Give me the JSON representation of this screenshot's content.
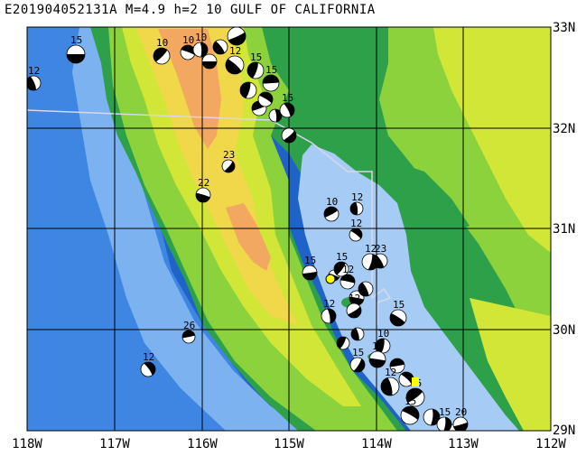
{
  "title": "E201904052131A M=4.9 h=2 10 GULF OF CALIFORNIA",
  "map": {
    "lon_labels": [
      "118W",
      "117W",
      "116W",
      "115W",
      "114W",
      "113W",
      "112W"
    ],
    "lat_labels": [
      "33N",
      "32N",
      "31N",
      "30N",
      "29N"
    ],
    "colors": {
      "deep_ocean": "#1f62c8",
      "ocean": "#3e86e2",
      "shelf": "#7cb2f0",
      "gulf": "#a6ccf6",
      "lowland": "#2fa04a",
      "plain": "#8cd23c",
      "upland": "#d2e638",
      "highland": "#f0d84a",
      "mountain": "#f2a860",
      "grid": "#000000",
      "border": "#d8d8e8",
      "highlight": "#ffff00"
    }
  },
  "mechanisms": [
    {
      "id": "m1",
      "label": "15"
    },
    {
      "id": "m2",
      "label": "12"
    },
    {
      "id": "m3",
      "label": "10"
    },
    {
      "id": "m4",
      "label": "10"
    },
    {
      "id": "m5",
      "label": "10"
    },
    {
      "id": "m6",
      "label": "12"
    },
    {
      "id": "m7",
      "label": "12"
    },
    {
      "id": "m8",
      "label": "15"
    },
    {
      "id": "m9",
      "label": "15"
    },
    {
      "id": "m10",
      "label": "15"
    },
    {
      "id": "m11",
      "label": "23"
    },
    {
      "id": "m12",
      "label": "22"
    },
    {
      "id": "m13",
      "label": "12"
    },
    {
      "id": "m14",
      "label": "10"
    },
    {
      "id": "m15",
      "label": "12"
    },
    {
      "id": "m16",
      "label": "12"
    },
    {
      "id": "m17",
      "label": "15"
    },
    {
      "id": "m18",
      "label": "23"
    },
    {
      "id": "m19",
      "label": "15"
    },
    {
      "id": "m20",
      "label": "12"
    },
    {
      "id": "m21",
      "label": "12"
    },
    {
      "id": "m22",
      "label": "12"
    },
    {
      "id": "m23",
      "label": "15"
    },
    {
      "id": "m24",
      "label": "10"
    },
    {
      "id": "m25",
      "label": "26"
    },
    {
      "id": "m26",
      "label": "12"
    },
    {
      "id": "m27",
      "label": "15"
    },
    {
      "id": "m28",
      "label": "12"
    },
    {
      "id": "m29",
      "label": "12"
    },
    {
      "id": "m30",
      "label": "15"
    },
    {
      "id": "m31",
      "label": "15"
    },
    {
      "id": "m32",
      "label": "15"
    },
    {
      "id": "m33",
      "label": "20"
    }
  ]
}
